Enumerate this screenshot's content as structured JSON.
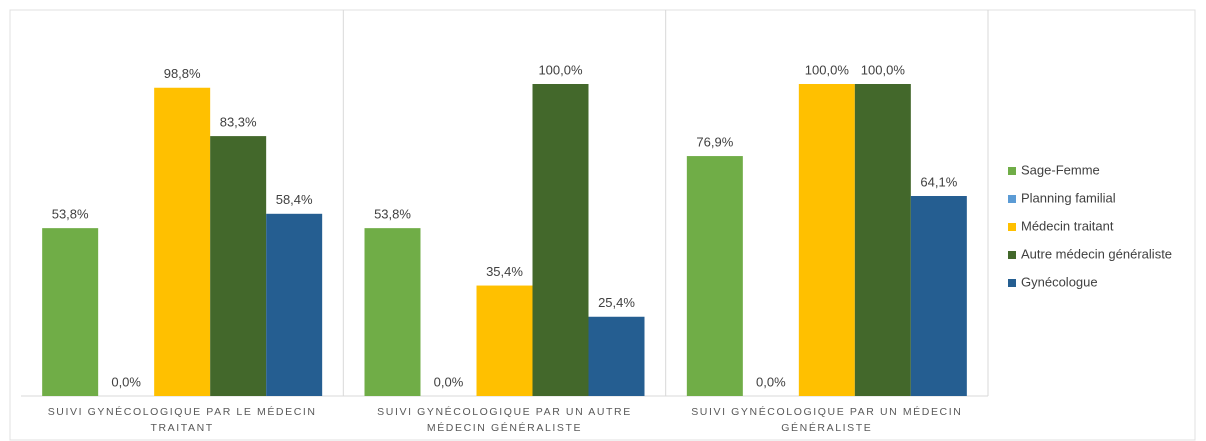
{
  "chart_data": {
    "type": "bar",
    "categories": [
      "SUIVI GYNÉCOLOGIQUE PAR LE MÉDECIN TRAITANT",
      "SUIVI GYNÉCOLOGIQUE PAR UN AUTRE MÉDECIN GÉNÉRALISTE",
      "SUIVI GYNÉCOLOGIQUE PAR UN MÉDECIN GÉNÉRALISTE"
    ],
    "ylim": [
      0,
      100
    ],
    "legend": "right",
    "series": [
      {
        "name": "Sage-Femme",
        "color": "#70ad47",
        "values": [
          53.8,
          53.8,
          76.9
        ],
        "value_labels": [
          "53,8%",
          "53,8%",
          "76,9%"
        ]
      },
      {
        "name": "Planning familial",
        "color": "#5b9bd5",
        "values": [
          0,
          0,
          0
        ],
        "value_labels": [
          "0,0%",
          "0,0%",
          "0,0%"
        ]
      },
      {
        "name": "Médecin traitant",
        "color": "#ffc000",
        "values": [
          98.8,
          35.4,
          100
        ],
        "value_labels": [
          "98,8%",
          "35,4%",
          "100,0%"
        ]
      },
      {
        "name": "Autre médecin généraliste",
        "color": "#43682b",
        "values": [
          83.3,
          100,
          100
        ],
        "value_labels": [
          "83,3%",
          "100,0%",
          "100,0%"
        ]
      },
      {
        "name": "Gynécologue",
        "color": "#255e91",
        "values": [
          58.4,
          25.4,
          64.1
        ],
        "value_labels": [
          "58,4%",
          "25,4%",
          "64,1%"
        ]
      }
    ]
  }
}
